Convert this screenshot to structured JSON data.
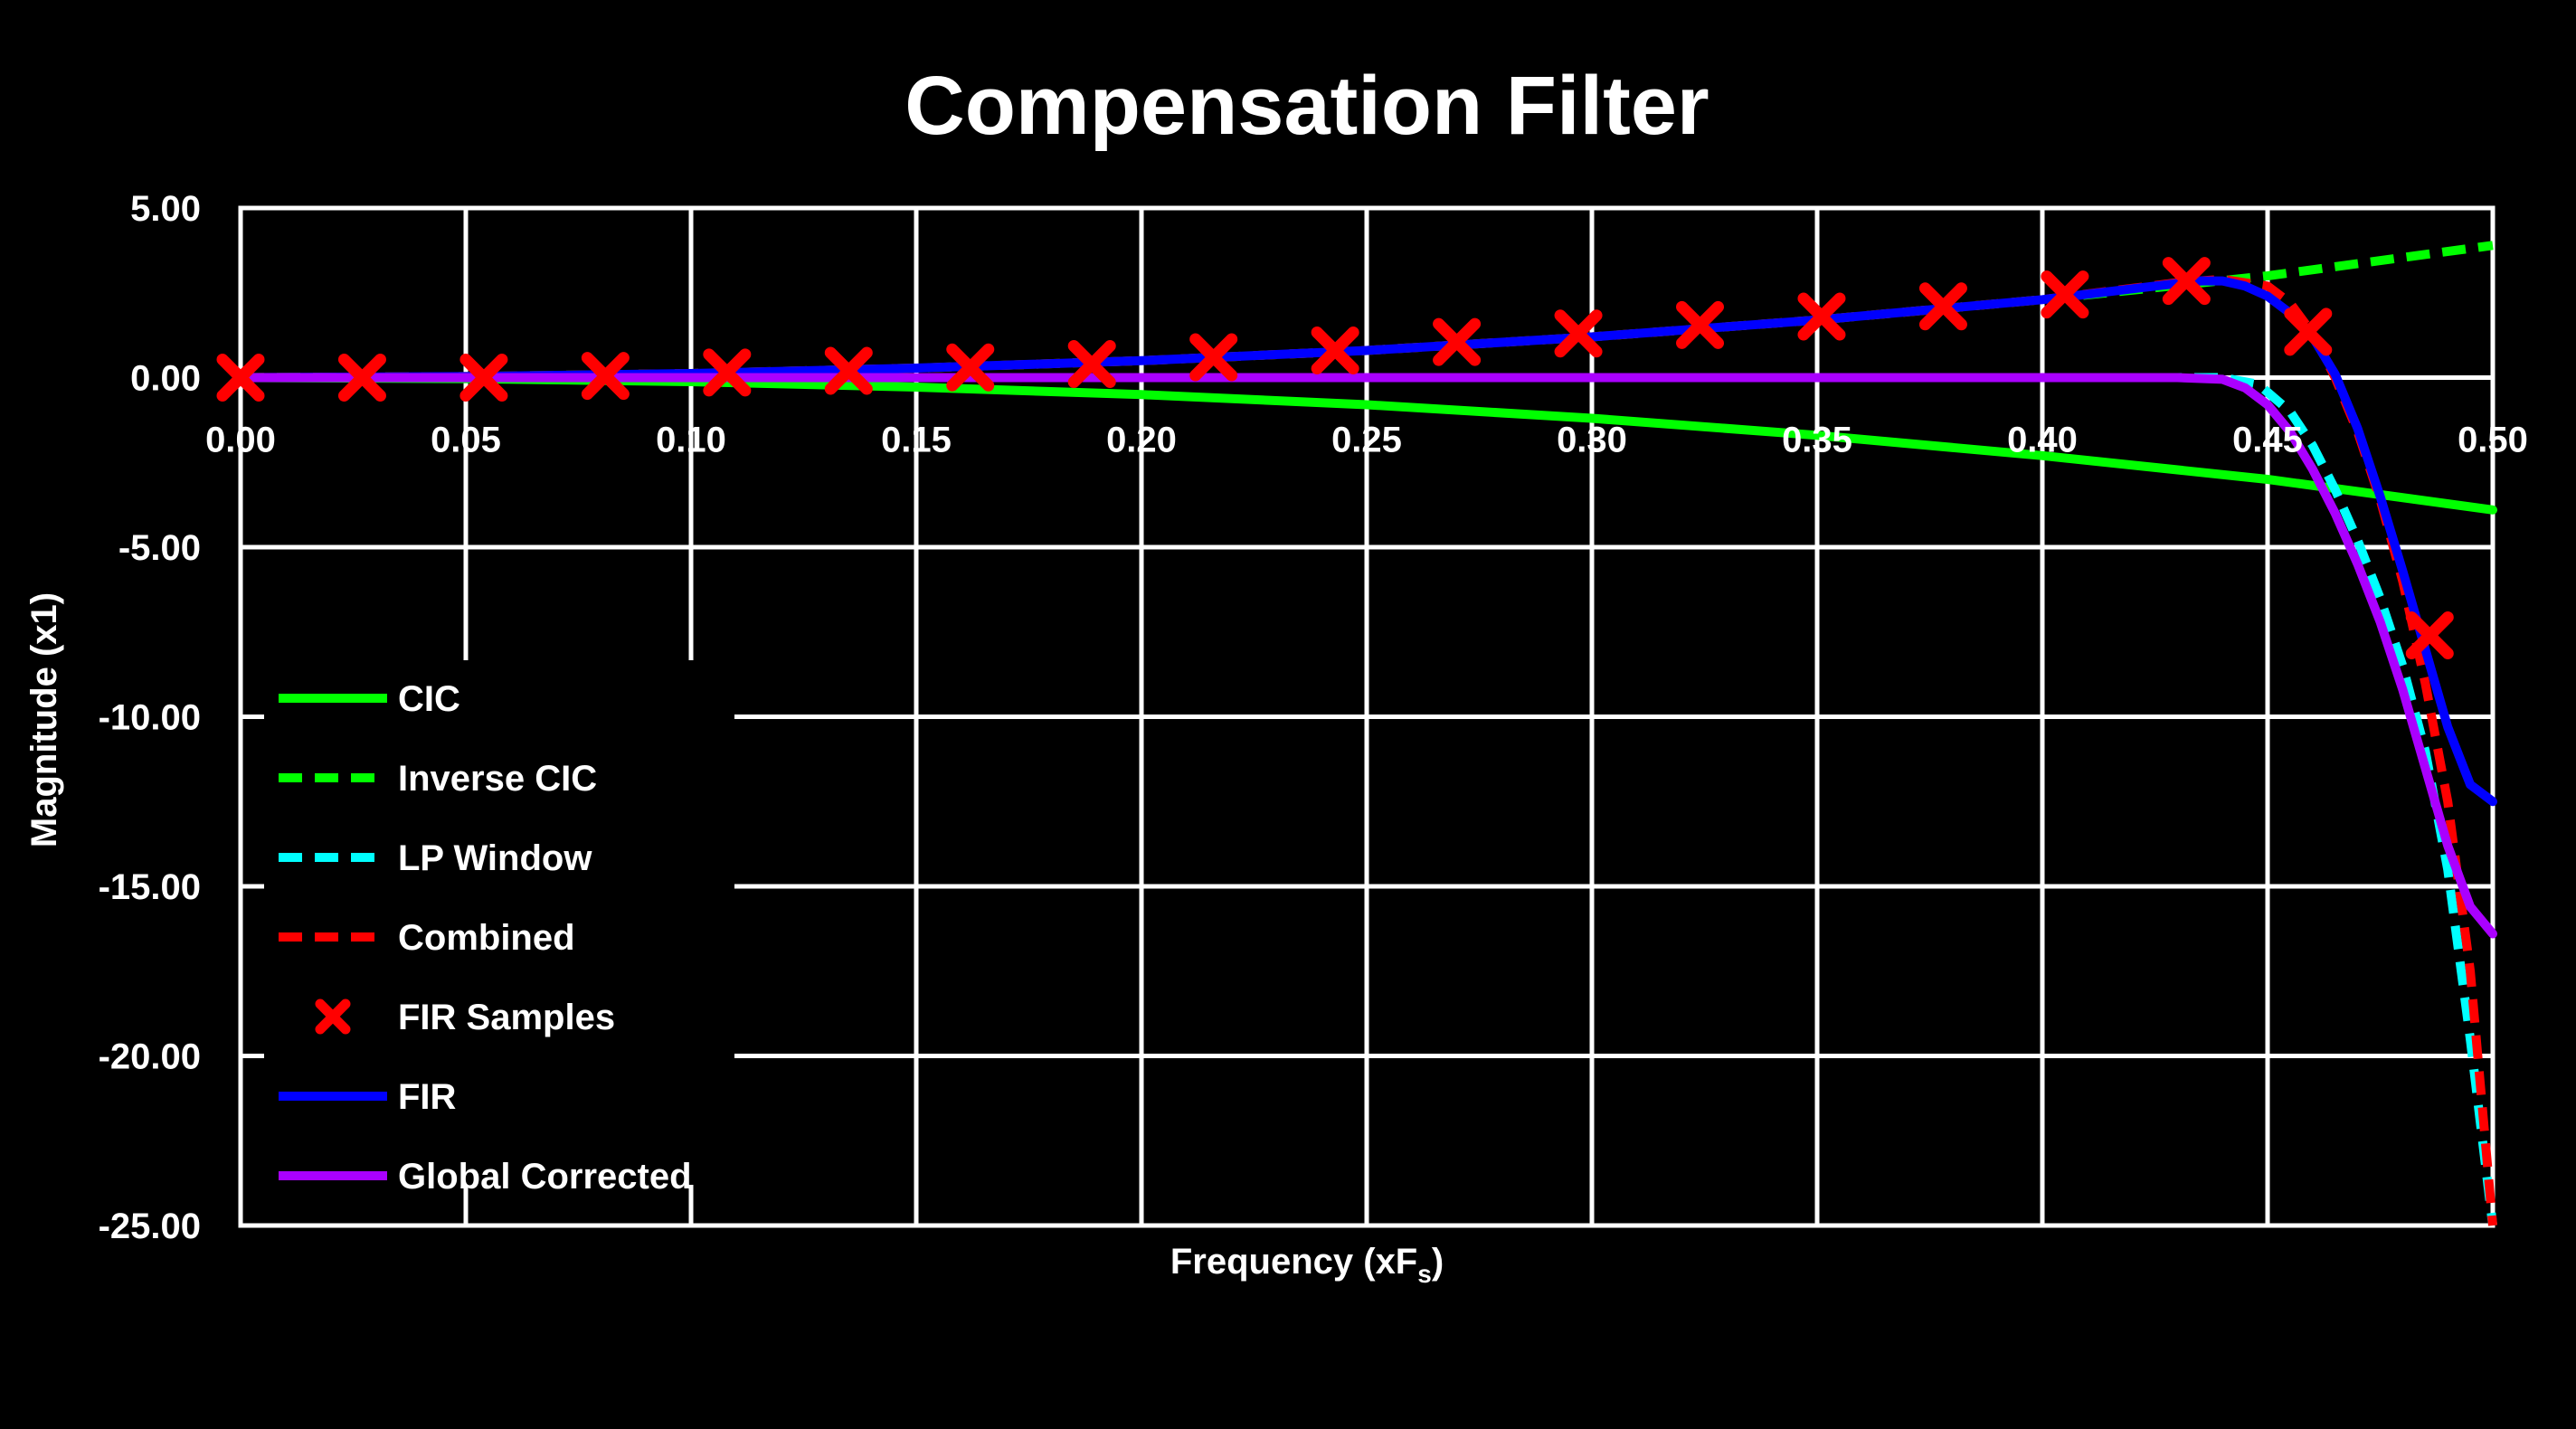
{
  "chart_data": {
    "type": "line",
    "title": "Compensation Filter",
    "xlabel_main": "Frequency (xF",
    "xlabel_sub": "s",
    "xlabel_close": ")",
    "ylabel": "Magnitude (x1)",
    "xlim": [
      0,
      0.5
    ],
    "ylim": [
      -25,
      5
    ],
    "x_ticks": [
      "0.00",
      "0.05",
      "0.10",
      "0.15",
      "0.20",
      "0.25",
      "0.30",
      "0.35",
      "0.40",
      "0.45",
      "0.50"
    ],
    "y_ticks": [
      "5.00",
      "0.00",
      "-5.00",
      "-10.00",
      "-15.00",
      "-20.00",
      "-25.00"
    ],
    "grid": true,
    "legend_position": "left",
    "background": "#000000",
    "foreground": "#ffffff",
    "series": [
      {
        "name": "CIC",
        "color": "#00ff00",
        "dash": "solid",
        "x": [
          0,
          0.05,
          0.1,
          0.15,
          0.2,
          0.25,
          0.3,
          0.35,
          0.4,
          0.45,
          0.5
        ],
        "y": [
          0,
          -0.03,
          -0.12,
          -0.28,
          -0.5,
          -0.8,
          -1.2,
          -1.7,
          -2.3,
          -3.0,
          -3.9
        ]
      },
      {
        "name": "Inverse CIC",
        "color": "#00ff00",
        "dash": "dashed",
        "x": [
          0,
          0.05,
          0.1,
          0.15,
          0.2,
          0.25,
          0.3,
          0.35,
          0.4,
          0.45,
          0.5
        ],
        "y": [
          0,
          0.03,
          0.12,
          0.28,
          0.5,
          0.8,
          1.2,
          1.7,
          2.3,
          3.0,
          3.9
        ]
      },
      {
        "name": "LP Window",
        "color": "#00ffff",
        "dash": "dashed",
        "x": [
          0,
          0.1,
          0.2,
          0.3,
          0.4,
          0.44,
          0.448,
          0.455,
          0.46,
          0.465,
          0.47,
          0.475,
          0.48,
          0.485,
          0.49,
          0.495,
          0.5
        ],
        "y": [
          0,
          0,
          0,
          0,
          0,
          0,
          -0.2,
          -1.0,
          -2.0,
          -3.3,
          -4.8,
          -6.5,
          -8.5,
          -11.0,
          -14.5,
          -19.5,
          -25
        ]
      },
      {
        "name": "Combined",
        "color": "#ff0000",
        "dash": "dashed",
        "x": [
          0,
          0.05,
          0.1,
          0.15,
          0.2,
          0.25,
          0.3,
          0.35,
          0.4,
          0.43,
          0.44,
          0.45,
          0.455,
          0.46,
          0.465,
          0.47,
          0.475,
          0.48,
          0.485,
          0.49,
          0.495,
          0.5
        ],
        "y": [
          0,
          0.03,
          0.12,
          0.28,
          0.5,
          0.8,
          1.2,
          1.7,
          2.3,
          2.8,
          2.9,
          2.7,
          2.2,
          1.3,
          0.0,
          -1.6,
          -3.6,
          -6.0,
          -9.0,
          -12.5,
          -17.5,
          -25
        ]
      },
      {
        "name": "FIR Samples",
        "color": "#ff0000",
        "marker": "x",
        "x": [
          0.0,
          0.027,
          0.054,
          0.081,
          0.108,
          0.135,
          0.162,
          0.189,
          0.216,
          0.243,
          0.27,
          0.297,
          0.324,
          0.351,
          0.378,
          0.405,
          0.432,
          0.459,
          0.486
        ],
        "y": [
          0.0,
          0.0,
          0.0,
          0.05,
          0.15,
          0.2,
          0.3,
          0.4,
          0.6,
          0.8,
          1.05,
          1.3,
          1.55,
          1.8,
          2.1,
          2.45,
          2.85,
          1.35,
          -7.6
        ]
      },
      {
        "name": "FIR",
        "color": "#0000ff",
        "dash": "solid",
        "x": [
          0,
          0.05,
          0.1,
          0.15,
          0.2,
          0.25,
          0.3,
          0.35,
          0.4,
          0.425,
          0.435,
          0.44,
          0.445,
          0.45,
          0.455,
          0.46,
          0.465,
          0.47,
          0.475,
          0.48,
          0.485,
          0.49,
          0.495,
          0.5
        ],
        "y": [
          0,
          0.03,
          0.12,
          0.28,
          0.5,
          0.8,
          1.2,
          1.7,
          2.3,
          2.7,
          2.85,
          2.85,
          2.7,
          2.4,
          1.9,
          1.2,
          0.1,
          -1.5,
          -3.5,
          -5.7,
          -8.0,
          -10.3,
          -12.0,
          -12.5
        ]
      },
      {
        "name": "Global Corrected",
        "color": "#aa00ff",
        "dash": "solid",
        "x": [
          0,
          0.05,
          0.1,
          0.2,
          0.3,
          0.4,
          0.43,
          0.44,
          0.445,
          0.45,
          0.455,
          0.46,
          0.465,
          0.47,
          0.475,
          0.48,
          0.485,
          0.49,
          0.495,
          0.5
        ],
        "y": [
          0,
          0,
          0,
          0,
          0,
          0,
          0,
          -0.05,
          -0.3,
          -0.8,
          -1.6,
          -2.7,
          -4.0,
          -5.5,
          -7.2,
          -9.2,
          -11.5,
          -13.8,
          -15.6,
          -16.4
        ]
      }
    ]
  }
}
